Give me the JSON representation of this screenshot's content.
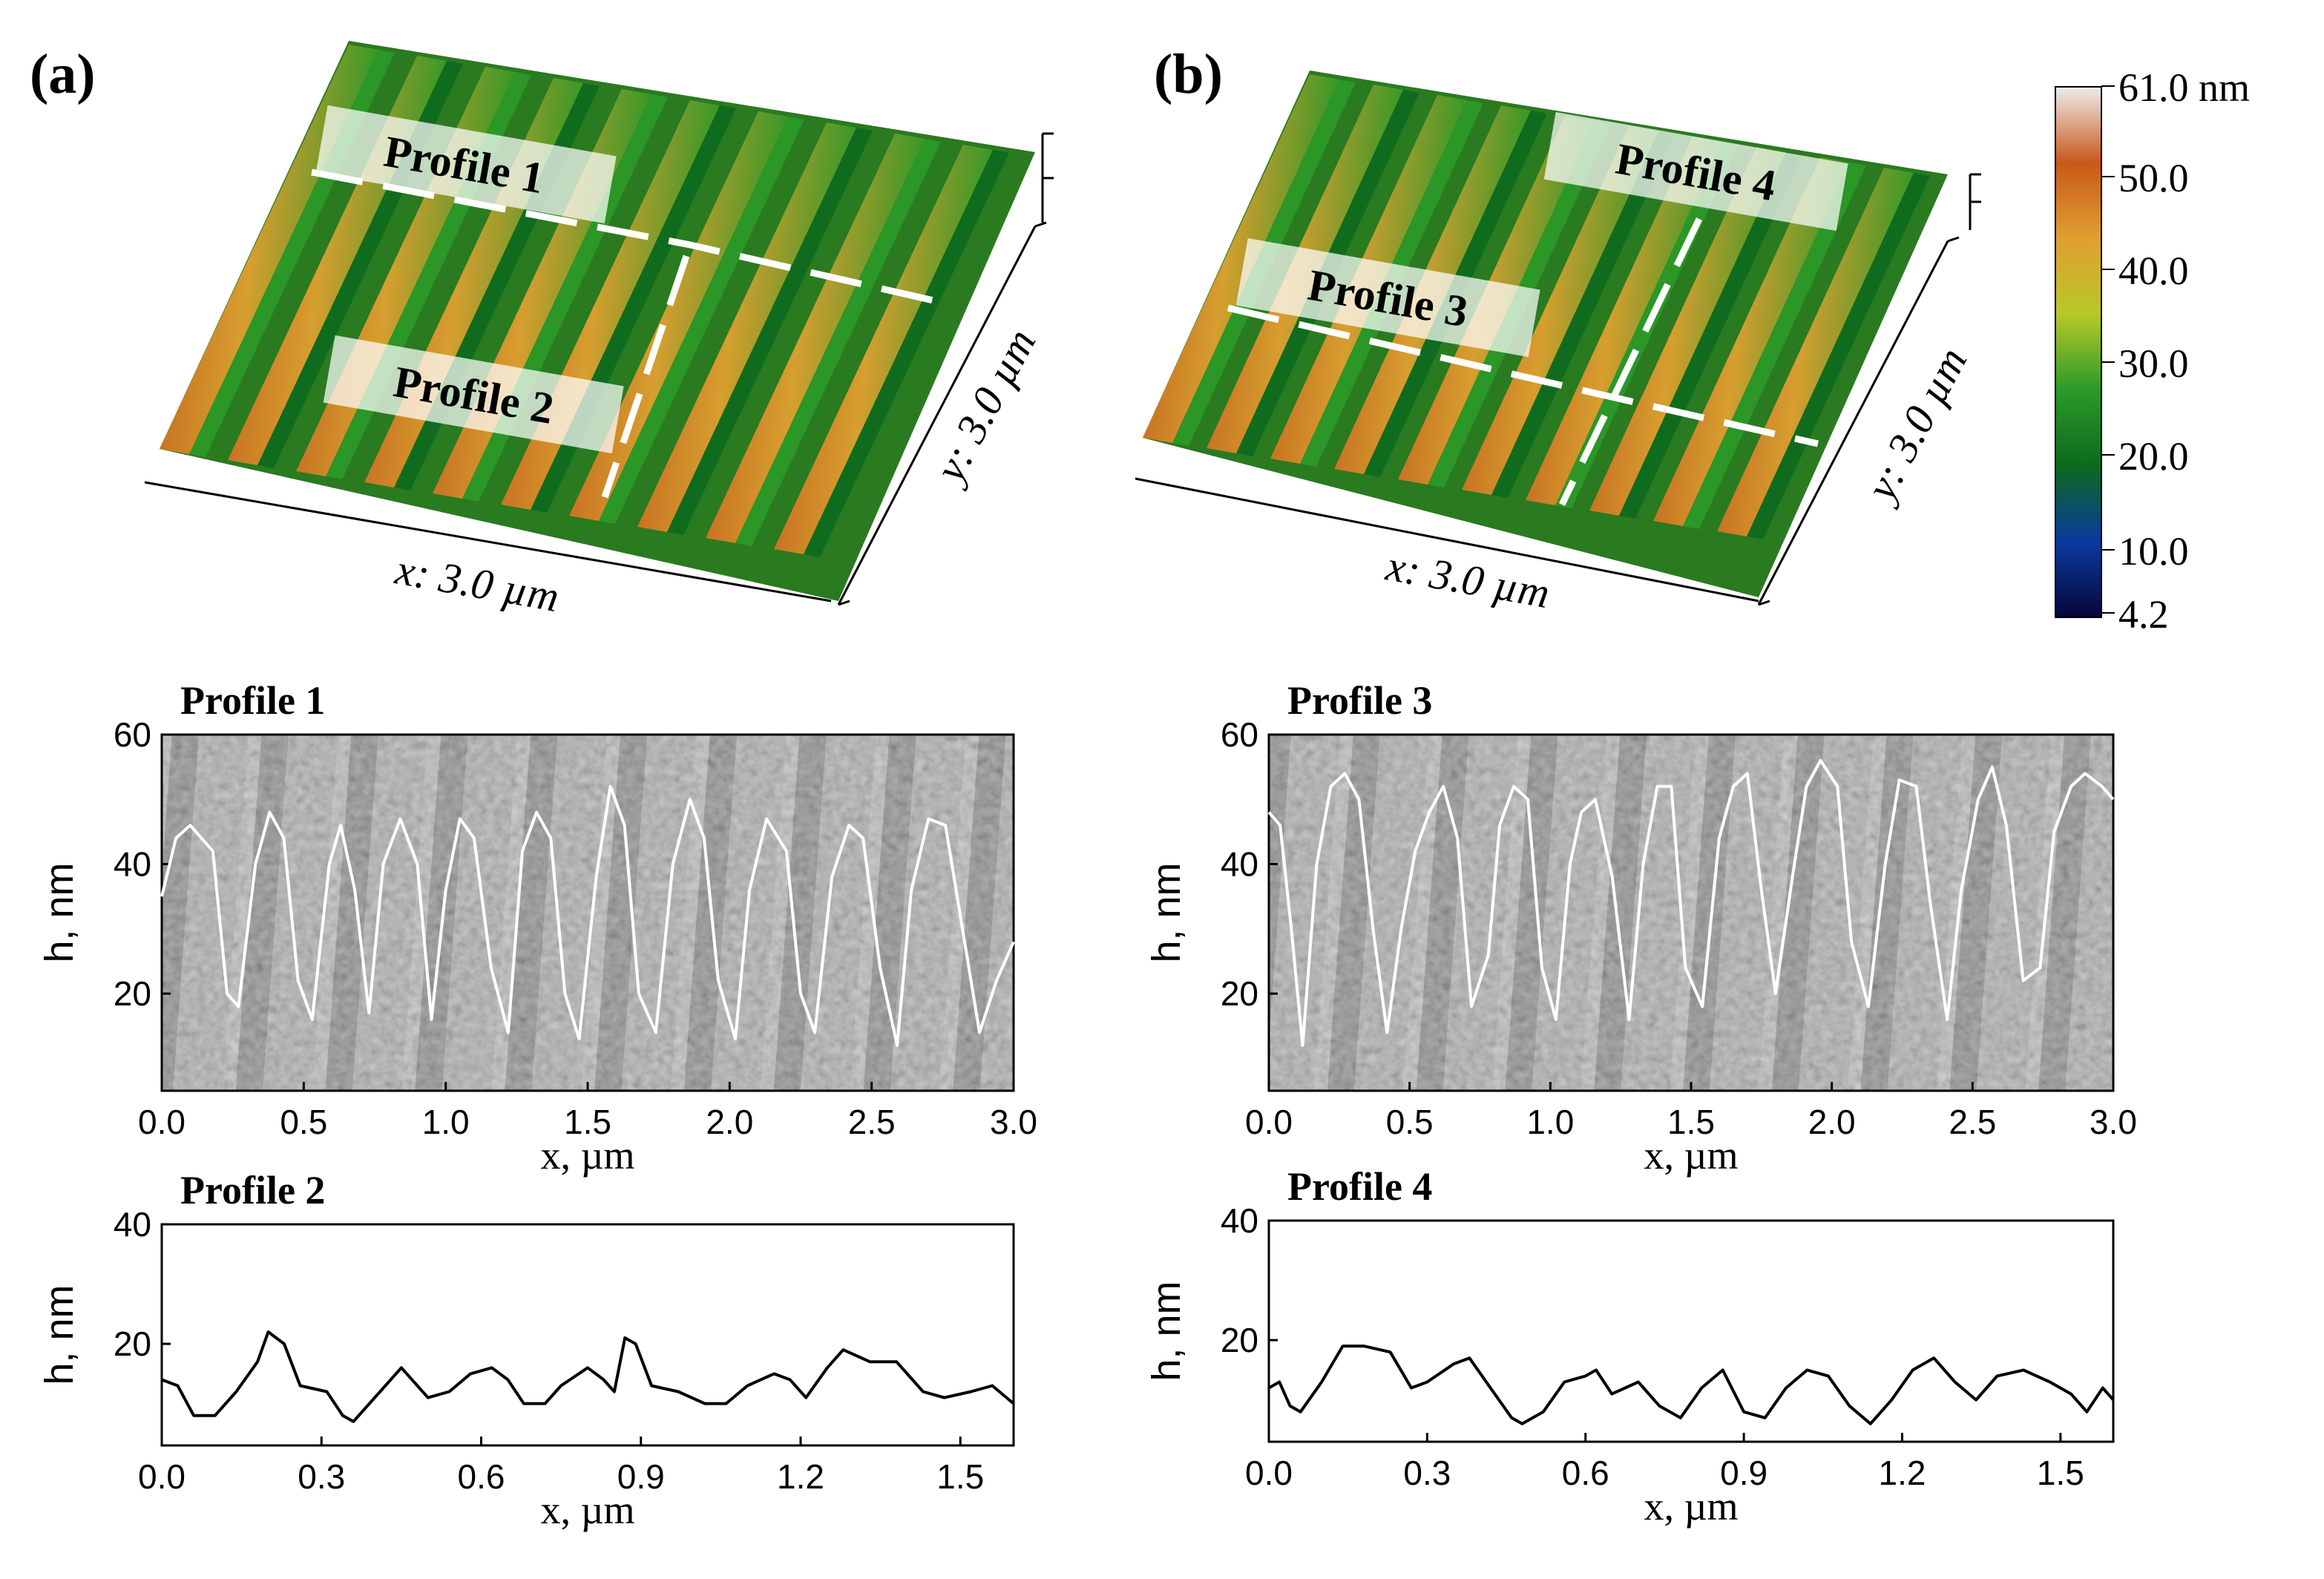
{
  "panel_a": {
    "label": "(a)",
    "x_axis": "x: 3.0 µm",
    "y_axis": "y: 3.0 µm",
    "profile_tags": [
      "Profile 1",
      "Profile 2"
    ]
  },
  "panel_b": {
    "label": "(b)",
    "x_axis": "x: 3.0 µm",
    "y_axis": "y: 3.0 µm",
    "profile_tags": [
      "Profile 3",
      "Profile 4"
    ]
  },
  "colorbar": {
    "labels": [
      "61.0 nm",
      "50.0",
      "40.0",
      "30.0",
      "20.0",
      "10.0",
      "4.2"
    ],
    "stops": [
      "#ededed",
      "#c8581a",
      "#e0a030",
      "#b8c828",
      "#2a9a28",
      "#0c6a1e",
      "#0a3aa0",
      "#06063a"
    ]
  },
  "chart_data": [
    {
      "type": "line",
      "title": "Profile 1",
      "xlabel": "x, µm",
      "ylabel": "h, nm",
      "xlim": [
        0,
        3.0
      ],
      "ylim": [
        5,
        60
      ],
      "xticks": [
        "0.0",
        "0.5",
        "1.0",
        "1.5",
        "2.0",
        "2.5",
        "3.0"
      ],
      "yticks": [
        "20",
        "40",
        "60"
      ],
      "line_color": "#ffffff",
      "background": "sem",
      "x": [
        0.0,
        0.05,
        0.1,
        0.18,
        0.23,
        0.27,
        0.33,
        0.38,
        0.43,
        0.48,
        0.53,
        0.59,
        0.63,
        0.68,
        0.73,
        0.78,
        0.84,
        0.9,
        0.95,
        1.0,
        1.05,
        1.1,
        1.16,
        1.22,
        1.27,
        1.32,
        1.37,
        1.42,
        1.47,
        1.53,
        1.58,
        1.63,
        1.68,
        1.74,
        1.8,
        1.86,
        1.91,
        1.96,
        2.02,
        2.07,
        2.13,
        2.2,
        2.25,
        2.3,
        2.36,
        2.42,
        2.47,
        2.53,
        2.59,
        2.64,
        2.7,
        2.76,
        2.82,
        2.88,
        2.94,
        3.0
      ],
      "values": [
        35,
        44,
        46,
        42,
        20,
        18,
        40,
        48,
        44,
        22,
        16,
        40,
        46,
        36,
        17,
        40,
        47,
        40,
        16,
        36,
        47,
        44,
        24,
        14,
        42,
        48,
        44,
        20,
        13,
        38,
        52,
        46,
        20,
        14,
        40,
        50,
        44,
        22,
        13,
        36,
        47,
        42,
        20,
        14,
        38,
        46,
        44,
        24,
        12,
        36,
        47,
        46,
        30,
        14,
        22,
        28
      ]
    },
    {
      "type": "line",
      "title": "Profile 2",
      "xlabel": "x, µm",
      "ylabel": "h, nm",
      "xlim": [
        0,
        1.6
      ],
      "ylim": [
        3,
        40
      ],
      "xticks": [
        "0.0",
        "0.3",
        "0.6",
        "0.9",
        "1.2",
        "1.5"
      ],
      "yticks": [
        "20",
        "40"
      ],
      "line_color": "#000000",
      "background": "white",
      "x": [
        0.0,
        0.03,
        0.06,
        0.1,
        0.14,
        0.18,
        0.2,
        0.23,
        0.26,
        0.31,
        0.34,
        0.36,
        0.4,
        0.45,
        0.5,
        0.54,
        0.58,
        0.62,
        0.65,
        0.68,
        0.72,
        0.75,
        0.8,
        0.83,
        0.85,
        0.87,
        0.89,
        0.92,
        0.97,
        1.02,
        1.06,
        1.1,
        1.15,
        1.18,
        1.21,
        1.25,
        1.28,
        1.33,
        1.38,
        1.43,
        1.47,
        1.52,
        1.56,
        1.6
      ],
      "values": [
        14,
        13,
        8,
        8,
        12,
        17,
        22,
        20,
        13,
        12,
        8,
        7,
        11,
        16,
        11,
        12,
        15,
        16,
        14,
        10,
        10,
        13,
        16,
        14,
        12,
        21,
        20,
        13,
        12,
        10,
        10,
        13,
        15,
        14,
        11,
        16,
        19,
        17,
        17,
        12,
        11,
        12,
        13,
        10
      ]
    },
    {
      "type": "line",
      "title": "Profile 3",
      "xlabel": "x, µm",
      "ylabel": "h, nm",
      "xlim": [
        0,
        3.0
      ],
      "ylim": [
        5,
        60
      ],
      "xticks": [
        "0.0",
        "0.5",
        "1.0",
        "1.5",
        "2.0",
        "2.5",
        "3.0"
      ],
      "yticks": [
        "20",
        "40",
        "60"
      ],
      "line_color": "#ffffff",
      "background": "sem",
      "x": [
        0.0,
        0.04,
        0.08,
        0.12,
        0.17,
        0.22,
        0.27,
        0.32,
        0.37,
        0.42,
        0.47,
        0.52,
        0.57,
        0.62,
        0.67,
        0.72,
        0.78,
        0.82,
        0.87,
        0.92,
        0.97,
        1.02,
        1.07,
        1.11,
        1.16,
        1.22,
        1.28,
        1.33,
        1.38,
        1.43,
        1.48,
        1.54,
        1.6,
        1.65,
        1.7,
        1.75,
        1.8,
        1.86,
        1.91,
        1.96,
        2.02,
        2.07,
        2.13,
        2.19,
        2.24,
        2.3,
        2.35,
        2.41,
        2.46,
        2.52,
        2.57,
        2.62,
        2.68,
        2.74,
        2.79,
        2.85,
        2.9,
        2.96,
        3.0
      ],
      "values": [
        48,
        46,
        30,
        12,
        40,
        52,
        54,
        50,
        30,
        14,
        30,
        42,
        48,
        52,
        44,
        18,
        26,
        46,
        52,
        50,
        24,
        16,
        40,
        48,
        50,
        38,
        16,
        40,
        52,
        52,
        24,
        18,
        44,
        52,
        54,
        36,
        20,
        38,
        52,
        56,
        52,
        28,
        18,
        40,
        53,
        52,
        34,
        16,
        36,
        50,
        55,
        46,
        22,
        24,
        45,
        52,
        54,
        52,
        50
      ]
    },
    {
      "type": "line",
      "title": "Profile 4",
      "xlabel": "x, µm",
      "ylabel": "h, nm",
      "xlim": [
        0,
        1.6
      ],
      "ylim": [
        3,
        40
      ],
      "xticks": [
        "0.0",
        "0.3",
        "0.6",
        "0.9",
        "1.2",
        "1.5"
      ],
      "yticks": [
        "20",
        "40"
      ],
      "line_color": "#000000",
      "background": "white",
      "x": [
        0.0,
        0.02,
        0.04,
        0.06,
        0.1,
        0.14,
        0.18,
        0.23,
        0.27,
        0.3,
        0.35,
        0.38,
        0.42,
        0.46,
        0.48,
        0.52,
        0.56,
        0.6,
        0.62,
        0.65,
        0.7,
        0.74,
        0.78,
        0.82,
        0.86,
        0.9,
        0.94,
        0.98,
        1.02,
        1.06,
        1.1,
        1.14,
        1.18,
        1.22,
        1.26,
        1.3,
        1.34,
        1.38,
        1.43,
        1.48,
        1.52,
        1.55,
        1.58,
        1.6
      ],
      "values": [
        12,
        13,
        9,
        8,
        13,
        19,
        19,
        18,
        12,
        13,
        16,
        17,
        12,
        7,
        6,
        8,
        13,
        14,
        15,
        11,
        13,
        9,
        7,
        12,
        15,
        8,
        7,
        12,
        15,
        14,
        9,
        6,
        10,
        15,
        17,
        13,
        10,
        14,
        15,
        13,
        11,
        8,
        12,
        10
      ]
    }
  ]
}
